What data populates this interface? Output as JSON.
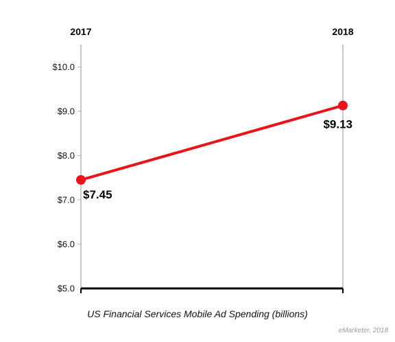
{
  "chart_data": {
    "type": "line",
    "title": "US Financial Services Mobile Ad Spending (billions)",
    "categories": [
      "2017",
      "2018"
    ],
    "series": [
      {
        "values": [
          7.45,
          9.13
        ],
        "labels": [
          "$7.45",
          "$9.13"
        ],
        "color": "#e8141c"
      }
    ],
    "ylim": [
      5.0,
      10.5
    ],
    "yticks": [
      5.0,
      6.0,
      7.0,
      8.0,
      9.0,
      10.0
    ],
    "ytick_labels": [
      "$5.0",
      "$6.0",
      "$7.0",
      "$8.0",
      "$9.0",
      "$10.0"
    ],
    "grid": false,
    "legend": "none",
    "axis_color": "#b5b5b5",
    "baseline_color": "#000000"
  },
  "source": "eMarketer, 2018"
}
